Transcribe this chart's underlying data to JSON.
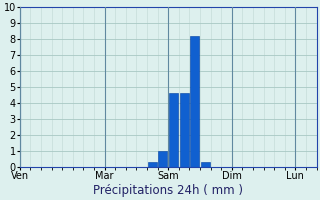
{
  "title": "",
  "xlabel": "Précipitations 24h ( mm )",
  "ylabel": "",
  "background_color": "#ddf0ee",
  "bar_color": "#1060d0",
  "bar_edge_color": "#0040a0",
  "grid_color": "#a8c8c4",
  "grid_minor_color": "#c0d8d4",
  "axis_line_color": "#2244aa",
  "ylim": [
    0,
    10
  ],
  "yticks": [
    0,
    1,
    2,
    3,
    4,
    5,
    6,
    7,
    8,
    9,
    10
  ],
  "xlim": [
    0,
    28
  ],
  "num_bars": 28,
  "bar_values": [
    0,
    0,
    0,
    0,
    0,
    0,
    0,
    0,
    0,
    0,
    0,
    0,
    0.3,
    1.0,
    4.6,
    4.6,
    8.2,
    0.3,
    0,
    0,
    0,
    0,
    0,
    0,
    0,
    0,
    0,
    0
  ],
  "day_labels": [
    "Ven",
    "Mar",
    "Sam",
    "Dim",
    "Lun"
  ],
  "day_tick_positions": [
    0,
    8,
    14,
    20,
    26
  ],
  "xlabel_fontsize": 8.5,
  "tick_fontsize": 7,
  "day_label_fontsize": 7
}
